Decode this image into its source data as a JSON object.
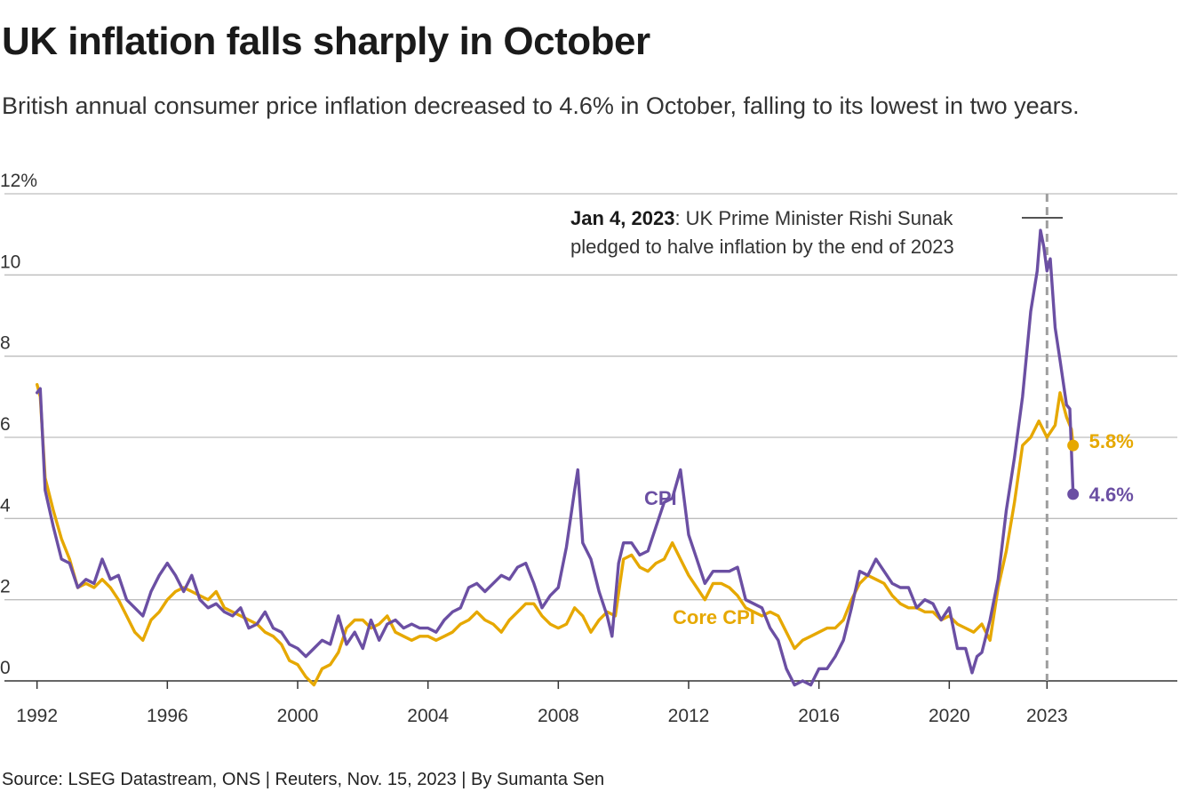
{
  "title": "UK inflation falls sharply in October",
  "subtitle": "British annual consumer price inflation decreased to 4.6% in October, falling to its lowest in two years.",
  "source": "Source: LSEG Datastream, ONS | Reuters, Nov. 15, 2023 | By Sumanta Sen",
  "colors": {
    "cpi": "#6b4fa3",
    "core": "#e6a800",
    "grid": "#bdbdbd",
    "axis": "#333333",
    "event_line": "#9e9e9e"
  },
  "chart_data": {
    "type": "line",
    "ylim": [
      0,
      12
    ],
    "xlim": [
      1991.0,
      2027.0
    ],
    "y_ticks": [
      {
        "value": 0,
        "label": "0"
      },
      {
        "value": 2,
        "label": "2"
      },
      {
        "value": 4,
        "label": "4"
      },
      {
        "value": 6,
        "label": "6"
      },
      {
        "value": 8,
        "label": "8"
      },
      {
        "value": 10,
        "label": "10"
      },
      {
        "value": 12,
        "label": "12%"
      }
    ],
    "x_ticks": [
      {
        "value": 1992,
        "label": "1992"
      },
      {
        "value": 1996,
        "label": "1996"
      },
      {
        "value": 2000,
        "label": "2000"
      },
      {
        "value": 2004,
        "label": "2004"
      },
      {
        "value": 2008,
        "label": "2008"
      },
      {
        "value": 2012,
        "label": "2012"
      },
      {
        "value": 2016,
        "label": "2016"
      },
      {
        "value": 2020,
        "label": "2020"
      },
      {
        "value": 2023,
        "label": "2023"
      }
    ],
    "grid": true,
    "series": [
      {
        "name": "CPI",
        "color": "#6b4fa3",
        "points": [
          [
            1992.0,
            7.1
          ],
          [
            1992.1,
            7.2
          ],
          [
            1992.25,
            4.7
          ],
          [
            1992.5,
            3.8
          ],
          [
            1992.75,
            3.0
          ],
          [
            1993.0,
            2.9
          ],
          [
            1993.25,
            2.3
          ],
          [
            1993.5,
            2.5
          ],
          [
            1993.75,
            2.4
          ],
          [
            1994.0,
            3.0
          ],
          [
            1994.25,
            2.5
          ],
          [
            1994.5,
            2.6
          ],
          [
            1994.75,
            2.0
          ],
          [
            1995.0,
            1.8
          ],
          [
            1995.25,
            1.6
          ],
          [
            1995.5,
            2.2
          ],
          [
            1995.75,
            2.6
          ],
          [
            1996.0,
            2.9
          ],
          [
            1996.25,
            2.6
          ],
          [
            1996.5,
            2.2
          ],
          [
            1996.75,
            2.6
          ],
          [
            1997.0,
            2.0
          ],
          [
            1997.25,
            1.8
          ],
          [
            1997.5,
            1.9
          ],
          [
            1997.75,
            1.7
          ],
          [
            1998.0,
            1.6
          ],
          [
            1998.25,
            1.8
          ],
          [
            1998.5,
            1.3
          ],
          [
            1998.75,
            1.4
          ],
          [
            1999.0,
            1.7
          ],
          [
            1999.25,
            1.3
          ],
          [
            1999.5,
            1.2
          ],
          [
            1999.75,
            0.9
          ],
          [
            2000.0,
            0.8
          ],
          [
            2000.25,
            0.6
          ],
          [
            2000.5,
            0.8
          ],
          [
            2000.75,
            1.0
          ],
          [
            2001.0,
            0.9
          ],
          [
            2001.25,
            1.6
          ],
          [
            2001.5,
            0.9
          ],
          [
            2001.75,
            1.2
          ],
          [
            2002.0,
            0.8
          ],
          [
            2002.25,
            1.5
          ],
          [
            2002.5,
            1.0
          ],
          [
            2002.75,
            1.4
          ],
          [
            2003.0,
            1.5
          ],
          [
            2003.25,
            1.3
          ],
          [
            2003.5,
            1.4
          ],
          [
            2003.75,
            1.3
          ],
          [
            2004.0,
            1.3
          ],
          [
            2004.25,
            1.2
          ],
          [
            2004.5,
            1.5
          ],
          [
            2004.75,
            1.7
          ],
          [
            2005.0,
            1.8
          ],
          [
            2005.25,
            2.3
          ],
          [
            2005.5,
            2.4
          ],
          [
            2005.75,
            2.2
          ],
          [
            2006.0,
            2.4
          ],
          [
            2006.25,
            2.6
          ],
          [
            2006.5,
            2.5
          ],
          [
            2006.75,
            2.8
          ],
          [
            2007.0,
            2.9
          ],
          [
            2007.25,
            2.4
          ],
          [
            2007.5,
            1.8
          ],
          [
            2007.75,
            2.1
          ],
          [
            2008.0,
            2.3
          ],
          [
            2008.25,
            3.3
          ],
          [
            2008.5,
            4.7
          ],
          [
            2008.6,
            5.2
          ],
          [
            2008.75,
            3.4
          ],
          [
            2009.0,
            3.0
          ],
          [
            2009.25,
            2.2
          ],
          [
            2009.5,
            1.6
          ],
          [
            2009.65,
            1.1
          ],
          [
            2009.85,
            2.9
          ],
          [
            2010.0,
            3.4
          ],
          [
            2010.25,
            3.4
          ],
          [
            2010.5,
            3.1
          ],
          [
            2010.75,
            3.2
          ],
          [
            2011.0,
            3.8
          ],
          [
            2011.25,
            4.4
          ],
          [
            2011.5,
            4.5
          ],
          [
            2011.75,
            5.2
          ],
          [
            2012.0,
            3.6
          ],
          [
            2012.25,
            3.0
          ],
          [
            2012.5,
            2.4
          ],
          [
            2012.75,
            2.7
          ],
          [
            2013.0,
            2.7
          ],
          [
            2013.25,
            2.7
          ],
          [
            2013.5,
            2.8
          ],
          [
            2013.75,
            2.0
          ],
          [
            2014.0,
            1.9
          ],
          [
            2014.25,
            1.8
          ],
          [
            2014.5,
            1.3
          ],
          [
            2014.75,
            1.0
          ],
          [
            2015.0,
            0.3
          ],
          [
            2015.25,
            -0.1
          ],
          [
            2015.5,
            0.0
          ],
          [
            2015.75,
            -0.1
          ],
          [
            2016.0,
            0.3
          ],
          [
            2016.25,
            0.3
          ],
          [
            2016.5,
            0.6
          ],
          [
            2016.75,
            1.0
          ],
          [
            2017.0,
            1.8
          ],
          [
            2017.25,
            2.7
          ],
          [
            2017.5,
            2.6
          ],
          [
            2017.75,
            3.0
          ],
          [
            2018.0,
            2.7
          ],
          [
            2018.25,
            2.4
          ],
          [
            2018.5,
            2.3
          ],
          [
            2018.75,
            2.3
          ],
          [
            2019.0,
            1.8
          ],
          [
            2019.25,
            2.0
          ],
          [
            2019.5,
            1.9
          ],
          [
            2019.75,
            1.5
          ],
          [
            2020.0,
            1.8
          ],
          [
            2020.25,
            0.8
          ],
          [
            2020.5,
            0.8
          ],
          [
            2020.7,
            0.2
          ],
          [
            2020.85,
            0.6
          ],
          [
            2021.0,
            0.7
          ],
          [
            2021.25,
            1.5
          ],
          [
            2021.5,
            2.5
          ],
          [
            2021.75,
            4.2
          ],
          [
            2022.0,
            5.5
          ],
          [
            2022.25,
            7.0
          ],
          [
            2022.5,
            9.1
          ],
          [
            2022.7,
            10.1
          ],
          [
            2022.8,
            11.1
          ],
          [
            2022.9,
            10.7
          ],
          [
            2023.0,
            10.1
          ],
          [
            2023.1,
            10.4
          ],
          [
            2023.25,
            8.7
          ],
          [
            2023.4,
            7.9
          ],
          [
            2023.6,
            6.8
          ],
          [
            2023.7,
            6.7
          ],
          [
            2023.8,
            4.6
          ]
        ]
      },
      {
        "name": "Core CPI",
        "color": "#e6a800",
        "points": [
          [
            1992.0,
            7.3
          ],
          [
            1992.1,
            7.0
          ],
          [
            1992.25,
            5.0
          ],
          [
            1992.5,
            4.2
          ],
          [
            1992.75,
            3.5
          ],
          [
            1993.0,
            3.0
          ],
          [
            1993.25,
            2.3
          ],
          [
            1993.5,
            2.4
          ],
          [
            1993.75,
            2.3
          ],
          [
            1994.0,
            2.5
          ],
          [
            1994.25,
            2.3
          ],
          [
            1994.5,
            2.0
          ],
          [
            1994.75,
            1.6
          ],
          [
            1995.0,
            1.2
          ],
          [
            1995.25,
            1.0
          ],
          [
            1995.5,
            1.5
          ],
          [
            1995.75,
            1.7
          ],
          [
            1996.0,
            2.0
          ],
          [
            1996.25,
            2.2
          ],
          [
            1996.5,
            2.3
          ],
          [
            1996.75,
            2.2
          ],
          [
            1997.0,
            2.1
          ],
          [
            1997.25,
            2.0
          ],
          [
            1997.5,
            2.2
          ],
          [
            1997.75,
            1.8
          ],
          [
            1998.0,
            1.7
          ],
          [
            1998.25,
            1.6
          ],
          [
            1998.5,
            1.5
          ],
          [
            1998.75,
            1.4
          ],
          [
            1999.0,
            1.2
          ],
          [
            1999.25,
            1.1
          ],
          [
            1999.5,
            0.9
          ],
          [
            1999.75,
            0.5
          ],
          [
            2000.0,
            0.4
          ],
          [
            2000.25,
            0.1
          ],
          [
            2000.5,
            -0.1
          ],
          [
            2000.75,
            0.3
          ],
          [
            2001.0,
            0.4
          ],
          [
            2001.25,
            0.7
          ],
          [
            2001.5,
            1.3
          ],
          [
            2001.75,
            1.5
          ],
          [
            2002.0,
            1.5
          ],
          [
            2002.25,
            1.3
          ],
          [
            2002.5,
            1.4
          ],
          [
            2002.75,
            1.6
          ],
          [
            2003.0,
            1.2
          ],
          [
            2003.25,
            1.1
          ],
          [
            2003.5,
            1.0
          ],
          [
            2003.75,
            1.1
          ],
          [
            2004.0,
            1.1
          ],
          [
            2004.25,
            1.0
          ],
          [
            2004.5,
            1.1
          ],
          [
            2004.75,
            1.2
          ],
          [
            2005.0,
            1.4
          ],
          [
            2005.25,
            1.5
          ],
          [
            2005.5,
            1.7
          ],
          [
            2005.75,
            1.5
          ],
          [
            2006.0,
            1.4
          ],
          [
            2006.25,
            1.2
          ],
          [
            2006.5,
            1.5
          ],
          [
            2006.75,
            1.7
          ],
          [
            2007.0,
            1.9
          ],
          [
            2007.25,
            1.9
          ],
          [
            2007.5,
            1.6
          ],
          [
            2007.75,
            1.4
          ],
          [
            2008.0,
            1.3
          ],
          [
            2008.25,
            1.4
          ],
          [
            2008.5,
            1.8
          ],
          [
            2008.75,
            1.6
          ],
          [
            2009.0,
            1.2
          ],
          [
            2009.25,
            1.5
          ],
          [
            2009.5,
            1.7
          ],
          [
            2009.75,
            1.6
          ],
          [
            2010.0,
            3.0
          ],
          [
            2010.25,
            3.1
          ],
          [
            2010.5,
            2.8
          ],
          [
            2010.75,
            2.7
          ],
          [
            2011.0,
            2.9
          ],
          [
            2011.25,
            3.0
          ],
          [
            2011.5,
            3.4
          ],
          [
            2011.75,
            3.0
          ],
          [
            2012.0,
            2.6
          ],
          [
            2012.25,
            2.3
          ],
          [
            2012.5,
            2.0
          ],
          [
            2012.75,
            2.4
          ],
          [
            2013.0,
            2.4
          ],
          [
            2013.25,
            2.3
          ],
          [
            2013.5,
            2.1
          ],
          [
            2013.75,
            1.8
          ],
          [
            2014.0,
            1.7
          ],
          [
            2014.25,
            1.6
          ],
          [
            2014.5,
            1.7
          ],
          [
            2014.75,
            1.6
          ],
          [
            2015.0,
            1.2
          ],
          [
            2015.25,
            0.8
          ],
          [
            2015.5,
            1.0
          ],
          [
            2015.75,
            1.1
          ],
          [
            2016.0,
            1.2
          ],
          [
            2016.25,
            1.3
          ],
          [
            2016.5,
            1.3
          ],
          [
            2016.75,
            1.5
          ],
          [
            2017.0,
            2.0
          ],
          [
            2017.25,
            2.4
          ],
          [
            2017.5,
            2.6
          ],
          [
            2017.75,
            2.5
          ],
          [
            2018.0,
            2.4
          ],
          [
            2018.25,
            2.1
          ],
          [
            2018.5,
            1.9
          ],
          [
            2018.75,
            1.8
          ],
          [
            2019.0,
            1.8
          ],
          [
            2019.25,
            1.7
          ],
          [
            2019.5,
            1.7
          ],
          [
            2019.75,
            1.5
          ],
          [
            2020.0,
            1.6
          ],
          [
            2020.25,
            1.4
          ],
          [
            2020.5,
            1.3
          ],
          [
            2020.75,
            1.2
          ],
          [
            2021.0,
            1.4
          ],
          [
            2021.25,
            1.0
          ],
          [
            2021.5,
            2.3
          ],
          [
            2021.75,
            3.2
          ],
          [
            2022.0,
            4.4
          ],
          [
            2022.25,
            5.8
          ],
          [
            2022.5,
            6.0
          ],
          [
            2022.75,
            6.4
          ],
          [
            2023.0,
            6.0
          ],
          [
            2023.25,
            6.3
          ],
          [
            2023.4,
            7.1
          ],
          [
            2023.6,
            6.5
          ],
          [
            2023.75,
            6.2
          ],
          [
            2023.8,
            5.8
          ]
        ]
      }
    ],
    "labels": {
      "cpi": "CPI",
      "core": "Core CPI"
    },
    "end_values": {
      "cpi": "4.6%",
      "core": "5.8%"
    },
    "event": {
      "x": 2023.0,
      "date_label": "Jan 4, 2023",
      "text_line1": ": UK Prime Minister Rishi Sunak",
      "text_line2": "pledged to halve inflation by the end of 2023"
    }
  }
}
